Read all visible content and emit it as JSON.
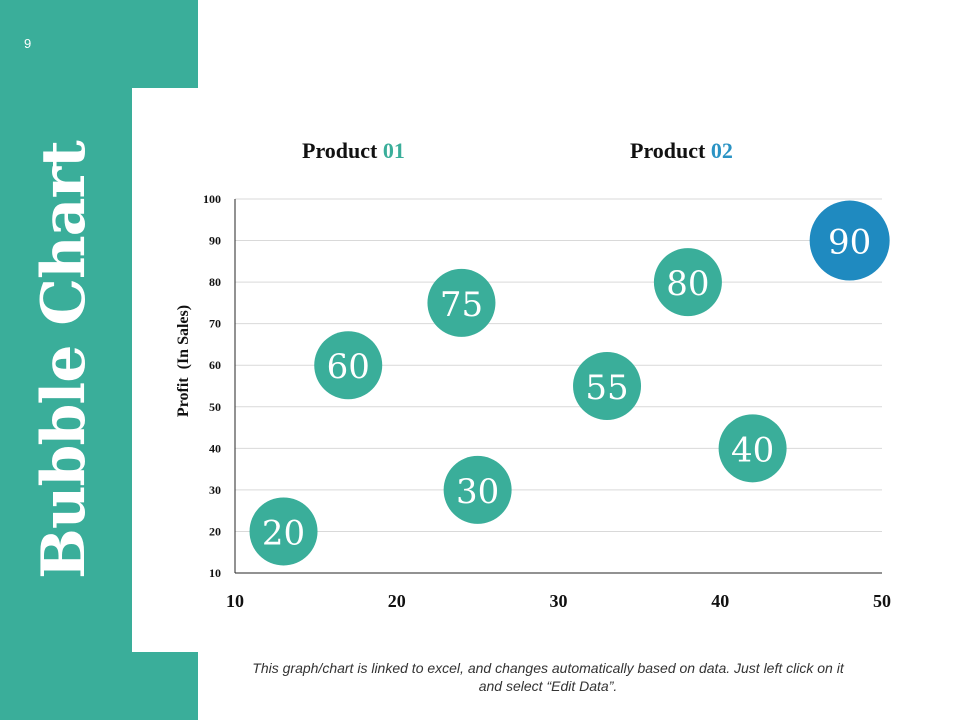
{
  "slide": {
    "page_number": "9",
    "side_title": "Bubble Chart",
    "footnote": "This graph/chart is linked to excel, and changes automatically based on data. Just left click on it and select “Edit Data”."
  },
  "colors": {
    "accent_teal": "#3aae9a",
    "accent_blue": "#1f8ac0",
    "grid": "#d9d9d9",
    "axis": "#262626"
  },
  "chart_data": {
    "type": "scatter",
    "title": "",
    "legend": [
      {
        "name": "Product",
        "suffix": "01"
      },
      {
        "name": "Product",
        "suffix": "02"
      }
    ],
    "xlabel": "",
    "ylabel": "Profit  (In Sales)",
    "xlim": [
      10,
      50
    ],
    "ylim": [
      10,
      100
    ],
    "x_ticks": [
      "10",
      "20",
      "30",
      "40",
      "50"
    ],
    "y_ticks": [
      "10",
      "20",
      "30",
      "40",
      "50",
      "60",
      "70",
      "80",
      "90",
      "100"
    ],
    "grid": true,
    "points": [
      {
        "x": 13,
        "y": 20,
        "label": "20",
        "series": "Product 01"
      },
      {
        "x": 17,
        "y": 60,
        "label": "60",
        "series": "Product 01"
      },
      {
        "x": 24,
        "y": 75,
        "label": "75",
        "series": "Product 01"
      },
      {
        "x": 25,
        "y": 30,
        "label": "30",
        "series": "Product 01"
      },
      {
        "x": 33,
        "y": 55,
        "label": "55",
        "series": "Product 01"
      },
      {
        "x": 38,
        "y": 80,
        "label": "80",
        "series": "Product 01"
      },
      {
        "x": 42,
        "y": 40,
        "label": "40",
        "series": "Product 01"
      },
      {
        "x": 48,
        "y": 90,
        "label": "90",
        "series": "Product 02"
      }
    ]
  }
}
